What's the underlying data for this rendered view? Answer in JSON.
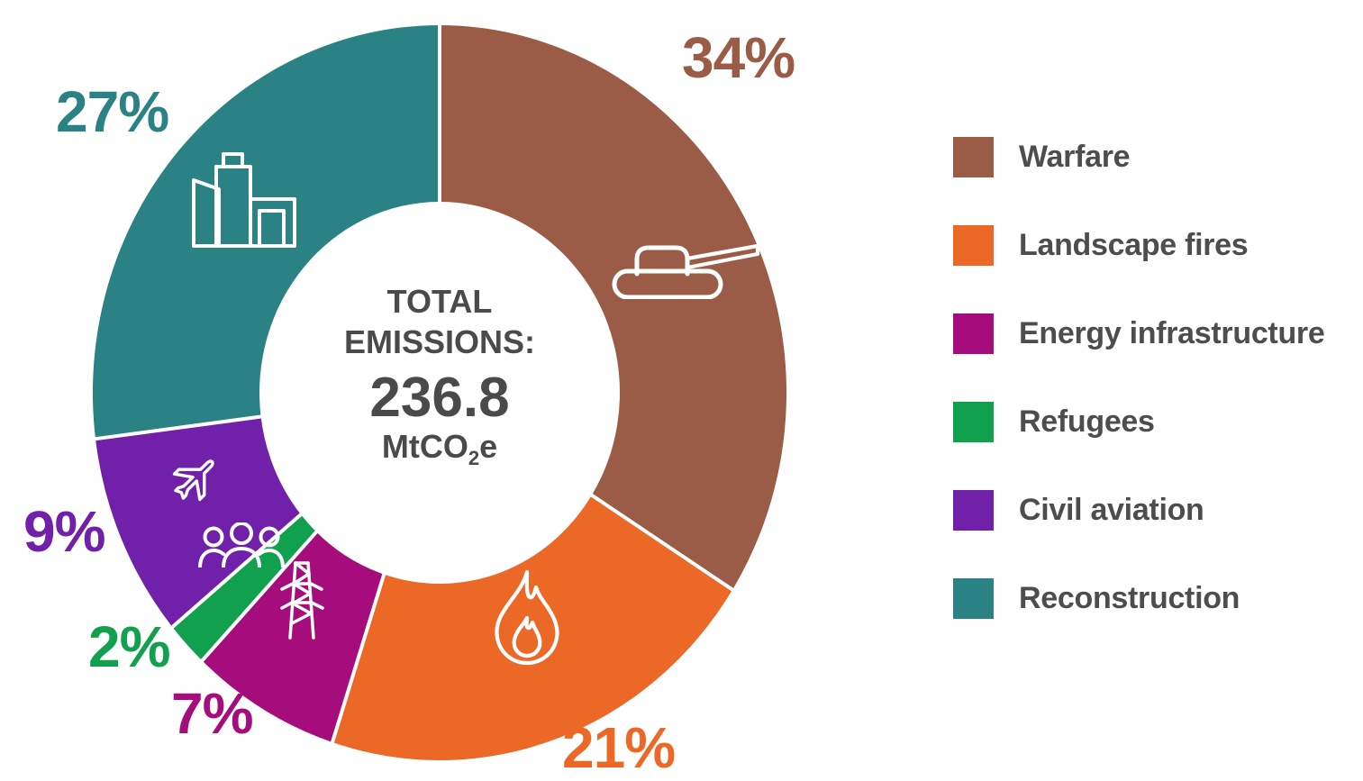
{
  "chart_data": {
    "type": "pie",
    "variant": "donut",
    "title": "",
    "direction": "clockwise",
    "start_angle_deg": 0,
    "legend_position": "right",
    "separator_color": "#ffffff",
    "text_color": "#4a4a4c",
    "center_label": {
      "heading": "TOTAL EMISSIONS:",
      "value": "236.8",
      "unit_prefix": "MtCO",
      "unit_sub": "2",
      "unit_suffix": "e"
    },
    "slices": [
      {
        "label": "Warfare",
        "value_pct": 34,
        "pct_label": "34%",
        "color": "#9a5c46",
        "icon": "tank-icon"
      },
      {
        "label": "Landscape fires",
        "value_pct": 21,
        "pct_label": "21%",
        "color": "#ec6826",
        "icon": "flame-icon"
      },
      {
        "label": "Energy infrastructure",
        "value_pct": 7,
        "pct_label": "7%",
        "color": "#a60d7c",
        "icon": "electricity-pylon-icon"
      },
      {
        "label": "Refugees",
        "value_pct": 2,
        "pct_label": "2%",
        "color": "#10a04e",
        "icon": "people-group-icon"
      },
      {
        "label": "Civil aviation",
        "value_pct": 9,
        "pct_label": "9%",
        "color": "#7120aa",
        "icon": "airplane-icon"
      },
      {
        "label": "Reconstruction",
        "value_pct": 27,
        "pct_label": "27%",
        "color": "#2a8285",
        "icon": "buildings-icon"
      }
    ]
  }
}
